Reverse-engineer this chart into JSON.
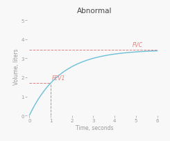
{
  "title": "Abnormal",
  "xlabel": "Time, seconds",
  "ylabel": "Volume, liters",
  "fvc_value": 3.45,
  "fev1_time": 1.0,
  "fev1_value": 1.7,
  "fvc_label": "FVC",
  "fev1_label": "FEV1",
  "curve_color": "#6bbfd8",
  "annotation_color": "#e08080",
  "xlim": [
    -0.1,
    6.2
  ],
  "ylim": [
    0,
    5.2
  ],
  "xticks": [
    0,
    1,
    2,
    3,
    4,
    5,
    6
  ],
  "yticks": [
    0,
    1,
    2,
    3,
    4,
    5
  ],
  "title_fontsize": 7.5,
  "label_fontsize": 5.5,
  "tick_fontsize": 5,
  "annot_fontsize": 5.5,
  "background_color": "#f8f8f8",
  "axis_color": "#aaaaaa",
  "text_color": "#999999"
}
